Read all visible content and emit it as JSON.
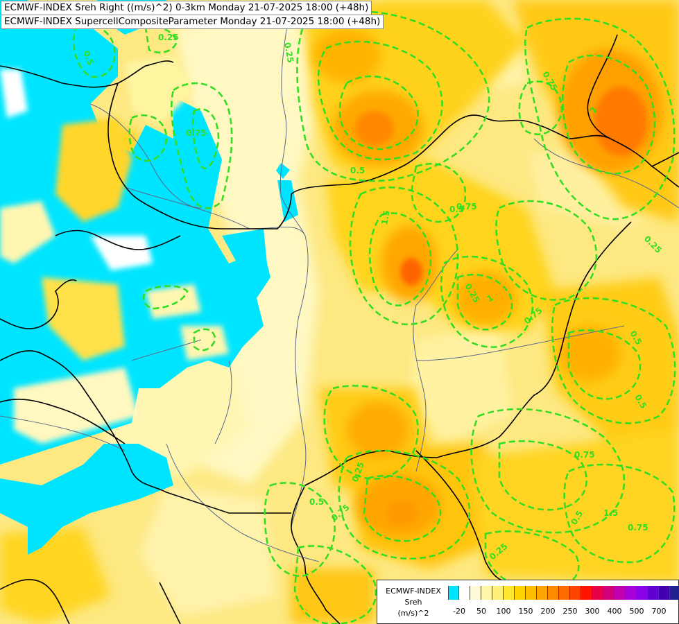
{
  "titles": {
    "line1": "ECMWF-INDEX Sreh Right ((m/s)^2) 0-3km Monday 21-07-2025 18:00 (+48h)",
    "line2": "ECMWF-INDEX SupercellCompositeParameter Monday 21-07-2025 18:00 (+48h)"
  },
  "legend": {
    "line1": "ECMWF-INDEX",
    "line2": "Sreh",
    "line3": "(m/s)^2",
    "colors": [
      "#00e5ff",
      "#ffffff",
      "#fffbd9",
      "#fff6a8",
      "#fff07a",
      "#ffe733",
      "#ffd400",
      "#ffbe00",
      "#ffa400",
      "#ff8a00",
      "#ff6a00",
      "#ff4400",
      "#ff1400",
      "#e8004a",
      "#d0007a",
      "#c000b0",
      "#a800d8",
      "#8a00e8",
      "#6000d0",
      "#4000b0",
      "#202090"
    ],
    "ticks": [
      {
        "label": "-20",
        "index": 1
      },
      {
        "label": "50",
        "index": 3
      },
      {
        "label": "100",
        "index": 5
      },
      {
        "label": "150",
        "index": 7
      },
      {
        "label": "200",
        "index": 9
      },
      {
        "label": "250",
        "index": 11
      },
      {
        "label": "300",
        "index": 13
      },
      {
        "label": "400",
        "index": 15
      },
      {
        "label": "500",
        "index": 17
      },
      {
        "label": "700",
        "index": 19
      }
    ]
  },
  "contour_labels": [
    "0.25",
    "0.5",
    "0.75",
    "1.5",
    "2",
    "0.25",
    "0.5",
    "0.75",
    "0.75",
    "0.25",
    "0.5",
    "0.5",
    "0.75",
    "0.75",
    "0.25",
    "0.5",
    "0.75",
    "0.25",
    "1",
    "0.5",
    "1.5",
    "0.5",
    "0.75",
    "0.25"
  ],
  "colors": {
    "contour": "#33dd22",
    "border": "#000000",
    "river": "#5a6a8a"
  }
}
